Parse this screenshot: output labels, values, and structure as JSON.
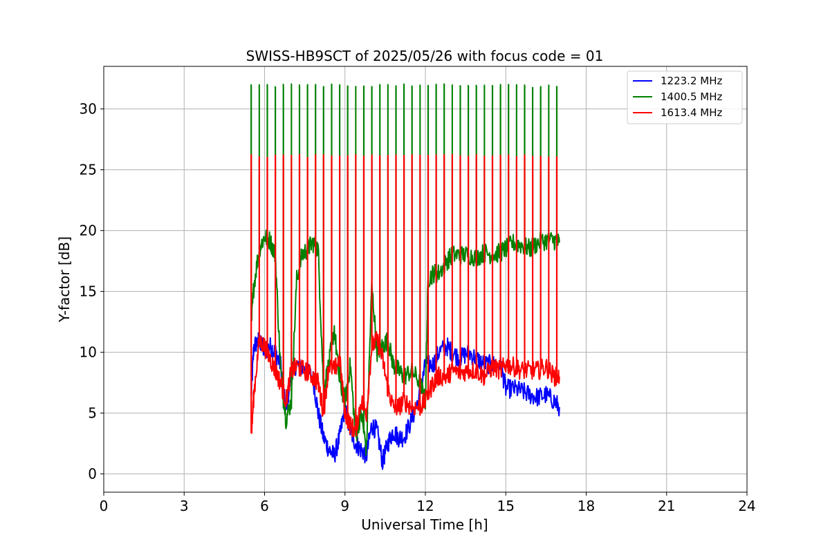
{
  "chart_data": {
    "type": "line",
    "title": "SWISS-HB9SCT of 2025/05/26 with focus code = 01",
    "xlabel": "Universal Time [h]",
    "ylabel": "Y-factor [dB]",
    "xlim": [
      0,
      24
    ],
    "ylim": [
      -1.5,
      33.5
    ],
    "xticks": [
      0,
      3,
      6,
      9,
      12,
      15,
      18,
      21,
      24
    ],
    "yticks": [
      0,
      5,
      10,
      15,
      20,
      25,
      30
    ],
    "grid": true,
    "legend_position": "top-right",
    "series": [
      {
        "name": "1223.2 MHz",
        "color": "#0000ff",
        "x": [
          5.5,
          5.6,
          5.8,
          6.0,
          6.2,
          6.4,
          6.6,
          6.8,
          7.0,
          7.2,
          7.5,
          7.8,
          8.0,
          8.2,
          8.4,
          8.6,
          8.8,
          9.0,
          9.2,
          9.4,
          9.6,
          9.8,
          10.0,
          10.2,
          10.4,
          10.6,
          10.8,
          11.0,
          11.2,
          11.5,
          11.8,
          12.0,
          12.3,
          12.5,
          12.8,
          13.0,
          13.3,
          13.6,
          13.9,
          14.2,
          14.5,
          14.8,
          15.0,
          15.3,
          15.6,
          15.9,
          16.2,
          16.5,
          16.8,
          17.0
        ],
        "y": [
          6.5,
          10.5,
          11.0,
          10.0,
          10.5,
          10.0,
          9.0,
          5.0,
          8.5,
          9.0,
          8.5,
          8.0,
          5.0,
          3.0,
          2.0,
          1.5,
          3.0,
          5.5,
          3.5,
          2.5,
          2.0,
          1.5,
          4.0,
          3.5,
          1.0,
          2.5,
          3.5,
          3.0,
          3.0,
          4.5,
          6.5,
          9.0,
          9.0,
          10.0,
          10.5,
          10.0,
          9.5,
          10.0,
          9.5,
          9.0,
          9.0,
          9.0,
          7.0,
          7.0,
          6.8,
          6.5,
          6.3,
          6.5,
          6.0,
          5.5
        ]
      },
      {
        "name": "1400.5 MHz",
        "color": "#008000",
        "x": [
          5.5,
          5.6,
          5.8,
          6.0,
          6.2,
          6.4,
          6.6,
          6.8,
          7.0,
          7.2,
          7.4,
          7.6,
          7.8,
          8.0,
          8.2,
          8.4,
          8.6,
          8.8,
          9.0,
          9.2,
          9.4,
          9.6,
          9.8,
          10.0,
          10.2,
          10.4,
          10.6,
          10.8,
          11.0,
          11.2,
          11.5,
          11.8,
          12.0,
          12.1,
          12.3,
          12.5,
          12.8,
          13.0,
          13.3,
          13.6,
          13.9,
          14.2,
          14.5,
          14.8,
          15.0,
          15.3,
          15.6,
          15.9,
          16.2,
          16.5,
          16.8,
          17.0
        ],
        "y": [
          12.0,
          15.5,
          18.5,
          19.5,
          19.2,
          18.0,
          8.5,
          4.5,
          6.0,
          16.0,
          18.0,
          18.5,
          19.0,
          18.5,
          7.0,
          9.0,
          12.0,
          7.5,
          6.0,
          9.0,
          3.0,
          5.0,
          2.0,
          15.5,
          10.0,
          10.5,
          11.0,
          9.0,
          8.5,
          8.0,
          8.5,
          7.5,
          6.0,
          16.0,
          16.5,
          16.5,
          17.5,
          18.0,
          18.0,
          18.0,
          17.8,
          18.2,
          18.0,
          18.2,
          18.5,
          19.0,
          18.8,
          18.5,
          19.0,
          19.2,
          19.2,
          19.0
        ]
      },
      {
        "name": "1613.4 MHz",
        "color": "#ff0000",
        "x": [
          5.5,
          5.6,
          5.8,
          6.0,
          6.2,
          6.4,
          6.6,
          6.8,
          7.0,
          7.2,
          7.5,
          7.8,
          8.0,
          8.2,
          8.4,
          8.6,
          8.8,
          9.0,
          9.2,
          9.4,
          9.6,
          9.8,
          10.0,
          10.2,
          10.4,
          10.6,
          10.8,
          11.0,
          11.2,
          11.5,
          11.8,
          12.0,
          12.3,
          12.5,
          12.8,
          13.0,
          13.3,
          13.6,
          13.9,
          14.2,
          14.5,
          14.8,
          15.0,
          15.3,
          15.6,
          15.9,
          16.2,
          16.5,
          16.8,
          17.0
        ],
        "y": [
          3.0,
          6.5,
          11.0,
          10.5,
          9.5,
          8.5,
          7.5,
          6.0,
          8.5,
          8.8,
          8.5,
          8.0,
          7.5,
          5.0,
          9.0,
          8.5,
          9.5,
          5.0,
          4.0,
          3.5,
          6.0,
          5.0,
          10.5,
          11.0,
          9.5,
          7.0,
          5.5,
          5.5,
          6.0,
          5.5,
          5.5,
          6.0,
          7.5,
          8.0,
          8.0,
          8.5,
          8.3,
          8.5,
          8.5,
          8.0,
          8.8,
          8.5,
          9.0,
          8.8,
          8.5,
          8.5,
          8.5,
          8.8,
          8.0,
          8.0
        ]
      }
    ],
    "spikes": {
      "x": [
        5.5,
        5.8,
        6.1,
        6.4,
        6.7,
        7.0,
        7.3,
        7.6,
        7.9,
        8.2,
        8.5,
        8.8,
        9.1,
        9.4,
        9.7,
        10.0,
        10.3,
        10.6,
        10.9,
        11.2,
        11.5,
        11.8,
        12.1,
        12.4,
        12.7,
        13.0,
        13.3,
        13.6,
        13.9,
        14.2,
        14.5,
        14.8,
        15.1,
        15.4,
        15.7,
        16.0,
        16.3,
        16.6,
        16.9
      ],
      "green_peak": 31.9,
      "red_peak": 26.1
    }
  }
}
